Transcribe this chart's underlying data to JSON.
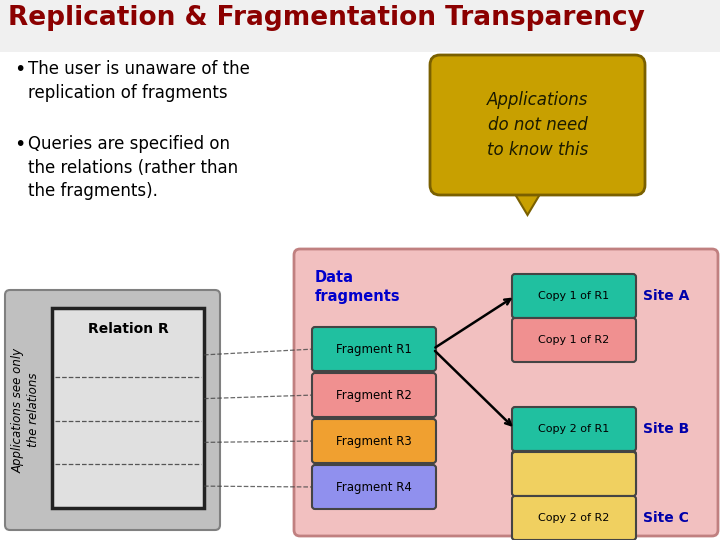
{
  "title": "Replication & Fragmentation Transparency",
  "title_color": "#8B0000",
  "bg_color": "#FFFFFF",
  "bullet1": "The user is unaware of the\nreplication of fragments",
  "bullet2": "Queries are specified on\nthe relations (rather than\nthe fragments).",
  "callout_text": "Applications\ndo not need\nto know this",
  "callout_bg": "#C8A000",
  "callout_border": "#7A6000",
  "pink_box_color": "#F2C0C0",
  "pink_box_border": "#C08080",
  "gray_box_color": "#C0C0C0",
  "gray_box_border": "#808080",
  "relation_box_color": "#E0E0E0",
  "relation_box_border": "#222222",
  "data_fragments_label": "Data\nfragments",
  "data_fragments_color": "#0000CC",
  "fragments": [
    "Fragment R1",
    "Fragment R2",
    "Fragment R3",
    "Fragment R4"
  ],
  "fragment_colors": [
    "#20C0A0",
    "#F09090",
    "#F0A030",
    "#9090EE"
  ],
  "fragment_border": "#444444",
  "copy_siteA": [
    [
      "Copy 1 of R1",
      "#20C0A0"
    ],
    [
      "Copy 1 of R2",
      "#F09090"
    ]
  ],
  "copy_siteB": [
    [
      "Copy 2 of R1",
      "#20C0A0"
    ],
    [
      "",
      "#9090EE"
    ]
  ],
  "copy_siteC": [
    [
      "",
      "#F0D060"
    ],
    [
      "Copy 2 of R2",
      "#F0D060"
    ]
  ],
  "site_label_color": "#0000AA",
  "apps_see_text": "Applications see only\nthe relations",
  "relation_r_label": "Relation R",
  "bullet_color": "#000000",
  "text_color": "#000000"
}
